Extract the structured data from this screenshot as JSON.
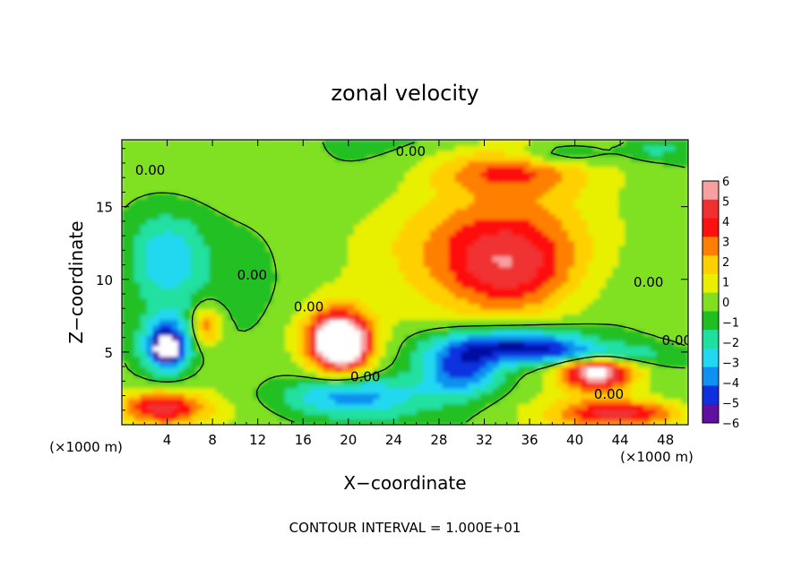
{
  "chart_data": {
    "type": "heatmap",
    "title": "zonal velocity",
    "xlabel": "X−coordinate",
    "ylabel": "Z−coordinate",
    "x_unit_left": "(×1000 m)",
    "x_unit_right": "(×1000 m)",
    "footer": "CONTOUR INTERVAL = 1.000E+01",
    "xlim": [
      0,
      50
    ],
    "ylim": [
      0,
      19.6
    ],
    "x_ticks": [
      4,
      8,
      12,
      16,
      20,
      24,
      28,
      32,
      36,
      40,
      44,
      48
    ],
    "y_ticks": [
      5,
      10,
      15
    ],
    "colorbar": {
      "levels": [
        6,
        5,
        4,
        3,
        2,
        1,
        0,
        -1,
        -2,
        -3,
        -4,
        -5,
        -6
      ],
      "colors": [
        "#f7a0a0",
        "#f03030",
        "#ff1010",
        "#ff8000",
        "#ffd000",
        "#e8f000",
        "#80e020",
        "#20c020",
        "#20e0a0",
        "#20d8f0",
        "#1090f0",
        "#1030e0",
        "#0010a0",
        "#6010a0"
      ]
    },
    "contour_labels": [
      {
        "text": "0.00",
        "x": 2.5,
        "z": 17.2
      },
      {
        "text": "0.00",
        "x": 25.5,
        "z": 18.5
      },
      {
        "text": "0.00",
        "x": 11.5,
        "z": 10.0
      },
      {
        "text": "0.00",
        "x": 16.5,
        "z": 7.8
      },
      {
        "text": "0.00",
        "x": 21.5,
        "z": 3.0
      },
      {
        "text": "0.00",
        "x": 46.5,
        "z": 9.5
      },
      {
        "text": "0.00",
        "x": 49.0,
        "z": 5.5
      },
      {
        "text": "0.00",
        "x": 43.0,
        "z": 1.8
      }
    ],
    "features": [
      {
        "kind": "background",
        "value": 0.6
      },
      {
        "kind": "blob",
        "x": 34.5,
        "z": 10.5,
        "rx": 6.5,
        "rz": 3.5,
        "value": 4.5
      },
      {
        "kind": "blob",
        "x": 33,
        "z": 13.5,
        "rx": 10,
        "rz": 4,
        "value": 2.6
      },
      {
        "kind": "blob",
        "x": 34,
        "z": 17.5,
        "rx": 7,
        "rz": 1.5,
        "value": 3.0
      },
      {
        "kind": "blob",
        "x": 19,
        "z": 6,
        "rx": 3.2,
        "rz": 2.3,
        "value": 5.5
      },
      {
        "kind": "blob",
        "x": 19.5,
        "z": 5.5,
        "rx": 2.2,
        "rz": 1.6,
        "value": 7.0
      },
      {
        "kind": "blob",
        "x": 7.5,
        "z": 6.8,
        "rx": 1.3,
        "rz": 1.4,
        "value": 3.8
      },
      {
        "kind": "blob",
        "x": 4,
        "z": 5.5,
        "rx": 2.2,
        "rz": 2.0,
        "value": -5.5
      },
      {
        "kind": "blob",
        "x": 4,
        "z": 5.3,
        "rx": 0.9,
        "rz": 0.7,
        "value": -9.0
      },
      {
        "kind": "blob",
        "x": 4,
        "z": 11.5,
        "rx": 3.2,
        "rz": 3.0,
        "value": -2.8
      },
      {
        "kind": "blob",
        "x": 35,
        "z": 5.5,
        "rx": 6.5,
        "rz": 1.2,
        "value": -5.5
      },
      {
        "kind": "blob",
        "x": 30,
        "z": 3.8,
        "rx": 3.5,
        "rz": 1.8,
        "value": -4.5
      },
      {
        "kind": "blob",
        "x": 20,
        "z": 2.0,
        "rx": 6,
        "rz": 1.3,
        "value": -3.5
      },
      {
        "kind": "blob",
        "x": 42,
        "z": 3.8,
        "rx": 3.3,
        "rz": 1.3,
        "value": 8.0
      },
      {
        "kind": "blob",
        "x": 42,
        "z": 4.8,
        "rx": 5,
        "rz": 0.8,
        "value": -4.5
      },
      {
        "kind": "blob",
        "x": 3.5,
        "z": 1.2,
        "rx": 4,
        "rz": 1.2,
        "value": 5.0
      },
      {
        "kind": "blob",
        "x": 44,
        "z": 0.8,
        "rx": 6,
        "rz": 1.0,
        "value": 5.0
      },
      {
        "kind": "blob",
        "x": 39,
        "z": 18.6,
        "rx": 4,
        "rz": 0.8,
        "value": -2.5
      },
      {
        "kind": "blob",
        "x": 47,
        "z": 19,
        "rx": 3,
        "rz": 0.8,
        "value": -1.5
      }
    ]
  }
}
